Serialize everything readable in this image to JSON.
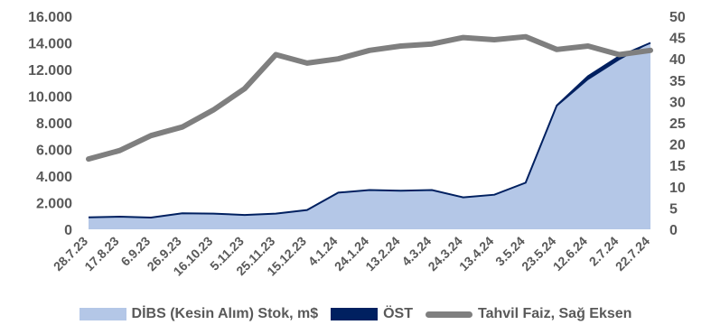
{
  "chart_data": {
    "type": "area",
    "x": [
      "28.7.23",
      "17.8.23",
      "6.9.23",
      "26.9.23",
      "16.10.23",
      "5.11.23",
      "25.11.23",
      "15.12.23",
      "4.1.24",
      "24.1.24",
      "13.2.24",
      "4.3.24",
      "24.3.24",
      "13.4.24",
      "3.5.24",
      "23.5.24",
      "12.6.24",
      "2.7.24",
      "22.7.24"
    ],
    "y_left_ticks": [
      "0",
      "2.000",
      "4.000",
      "6.000",
      "8.000",
      "10.000",
      "12.000",
      "14.000",
      "16.000"
    ],
    "y_right_ticks": [
      "0",
      "5",
      "10",
      "15",
      "20",
      "25",
      "30",
      "35",
      "40",
      "45",
      "50"
    ],
    "ylim_left": [
      0,
      16000
    ],
    "ylim_right": [
      0,
      50
    ],
    "colors": {
      "dibs": "#b4c7e7",
      "ost": "#002060",
      "faiz": "#7f7f7f",
      "axis": "#595959"
    },
    "series": [
      {
        "name": "DİBS (Kesin Alım) Stok, m$",
        "axis": "left",
        "kind": "area",
        "values": [
          900,
          950,
          880,
          1200,
          1180,
          1080,
          1180,
          1450,
          2750,
          2950,
          2900,
          2950,
          2400,
          2600,
          3500,
          9200,
          11200,
          12700,
          14000
        ]
      },
      {
        "name": "ÖST",
        "axis": "left",
        "kind": "area",
        "values": [
          900,
          950,
          880,
          1200,
          1180,
          1080,
          1180,
          1450,
          2750,
          2950,
          2900,
          2950,
          2400,
          2600,
          3500,
          9300,
          11500,
          13000,
          14000
        ]
      },
      {
        "name": "Tahvil Faiz, Sağ Eksen",
        "axis": "right",
        "kind": "line",
        "values": [
          16.5,
          18.5,
          22,
          24,
          28,
          33,
          41,
          39,
          40,
          42,
          43,
          43.5,
          45,
          44.5,
          45.2,
          42.2,
          43,
          41,
          42
        ]
      }
    ]
  }
}
